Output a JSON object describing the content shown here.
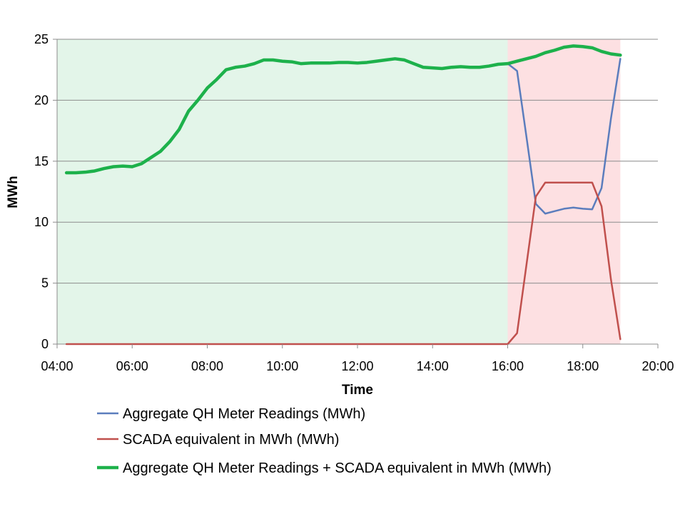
{
  "chart_data": {
    "type": "line",
    "xlabel": "Time",
    "ylabel": "MWh",
    "xlim": [
      "04:00",
      "20:00"
    ],
    "ylim": [
      0,
      25
    ],
    "x_ticks": [
      "04:00",
      "06:00",
      "08:00",
      "10:00",
      "12:00",
      "14:00",
      "16:00",
      "18:00",
      "20:00"
    ],
    "y_ticks": [
      0,
      5,
      10,
      15,
      20,
      25
    ],
    "grid": "horizontal",
    "legend_position": "bottom",
    "shaded_regions": [
      {
        "from": "04:00",
        "to": "16:00",
        "color": "#e3f5e9"
      },
      {
        "from": "16:00",
        "to": "19:00",
        "color": "#fde0e2"
      }
    ],
    "series": [
      {
        "name": "Aggregate QH Meter Readings (MWh)",
        "color": "#5b7dbd",
        "line_width": 2.5,
        "x": [
          "16:00",
          "16:15",
          "16:30",
          "16:45",
          "17:00",
          "17:15",
          "17:30",
          "17:45",
          "18:00",
          "18:15",
          "18:30",
          "18:45",
          "19:00"
        ],
        "y": [
          23.0,
          22.4,
          17.0,
          11.5,
          10.7,
          10.9,
          11.1,
          11.2,
          11.1,
          11.05,
          12.8,
          18.5,
          23.4
        ]
      },
      {
        "name": "SCADA equivalent in MWh (MWh)",
        "color": "#c0504d",
        "line_width": 2.5,
        "x": [
          "04:15",
          "16:00",
          "16:15",
          "16:30",
          "16:45",
          "17:00",
          "17:15",
          "17:30",
          "17:45",
          "18:00",
          "18:15",
          "18:30",
          "18:45",
          "19:00"
        ],
        "y": [
          0,
          0,
          0.9,
          6.5,
          12.1,
          13.25,
          13.25,
          13.25,
          13.25,
          13.25,
          13.25,
          11.3,
          5.3,
          0.4
        ]
      },
      {
        "name": "Aggregate QH Meter Readings + SCADA equivalent in MWh (MWh)",
        "color": "#1db14b",
        "line_width": 4.5,
        "x": [
          "04:15",
          "04:30",
          "04:45",
          "05:00",
          "05:15",
          "05:30",
          "05:45",
          "06:00",
          "06:15",
          "06:30",
          "06:45",
          "07:00",
          "07:15",
          "07:30",
          "07:45",
          "08:00",
          "08:15",
          "08:30",
          "08:45",
          "09:00",
          "09:15",
          "09:30",
          "09:45",
          "10:00",
          "10:15",
          "10:30",
          "10:45",
          "11:00",
          "11:15",
          "11:30",
          "11:45",
          "12:00",
          "12:15",
          "12:30",
          "12:45",
          "13:00",
          "13:15",
          "13:30",
          "13:45",
          "14:00",
          "14:15",
          "14:30",
          "14:45",
          "15:00",
          "15:15",
          "15:30",
          "15:45",
          "16:00",
          "16:15",
          "16:30",
          "16:45",
          "17:00",
          "17:15",
          "17:30",
          "17:45",
          "18:00",
          "18:15",
          "18:30",
          "18:45",
          "19:00"
        ],
        "y": [
          14.05,
          14.05,
          14.1,
          14.2,
          14.4,
          14.55,
          14.6,
          14.55,
          14.8,
          15.3,
          15.8,
          16.6,
          17.6,
          19.1,
          20.0,
          21.0,
          21.7,
          22.5,
          22.7,
          22.8,
          23.0,
          23.3,
          23.3,
          23.2,
          23.15,
          23.0,
          23.05,
          23.05,
          23.05,
          23.1,
          23.1,
          23.05,
          23.1,
          23.2,
          23.3,
          23.4,
          23.3,
          23.0,
          22.7,
          22.65,
          22.6,
          22.7,
          22.75,
          22.7,
          22.7,
          22.8,
          22.95,
          23.0,
          23.2,
          23.4,
          23.6,
          23.9,
          24.1,
          24.35,
          24.45,
          24.4,
          24.3,
          24.0,
          23.8,
          23.7
        ]
      }
    ]
  }
}
